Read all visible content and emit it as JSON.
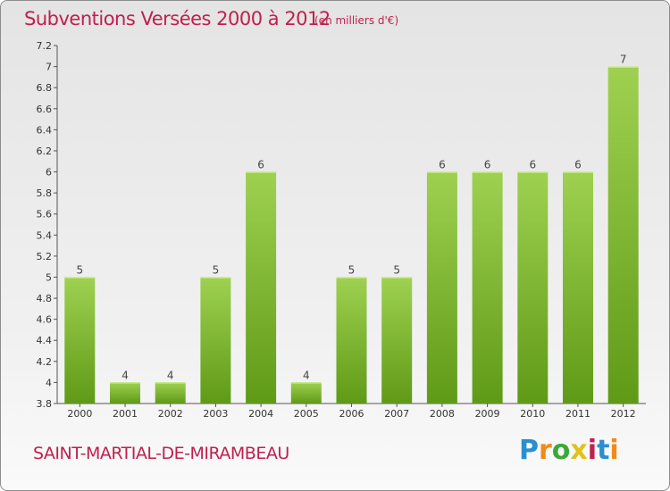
{
  "header": {
    "title": "Subventions Versées 2000 à 2012",
    "unit": "(en milliers d'€)"
  },
  "footer": {
    "commune": "SAINT-MARTIAL-DE-MIRAMBEAU",
    "logo": "Proxiti"
  },
  "colors": {
    "bar_top": "#9fd151",
    "bar_bottom": "#5f9a17",
    "title": "#c0204e"
  },
  "chart_data": {
    "type": "bar",
    "title": "Subventions Versées 2000 à 2012",
    "subtitle": "(en milliers d'€)",
    "categories": [
      "2000",
      "2001",
      "2002",
      "2003",
      "2004",
      "2005",
      "2006",
      "2007",
      "2008",
      "2009",
      "2010",
      "2011",
      "2012"
    ],
    "values": [
      5,
      4,
      4,
      5,
      6,
      4,
      5,
      5,
      6,
      6,
      6,
      6,
      7
    ],
    "data_labels": [
      "5",
      "4",
      "4",
      "5",
      "6",
      "4",
      "5",
      "5",
      "6",
      "6",
      "6",
      "6",
      "7"
    ],
    "ylim": [
      3.8,
      7.2
    ],
    "yticks": [
      "3.8",
      "4",
      "4.2",
      "4.4",
      "4.6",
      "4.8",
      "5",
      "5.2",
      "5.4",
      "5.6",
      "5.8",
      "6",
      "6.2",
      "6.4",
      "6.6",
      "6.8",
      "7",
      "7.2"
    ],
    "xlabel": "",
    "ylabel": "",
    "grid": false,
    "legend": "none"
  }
}
